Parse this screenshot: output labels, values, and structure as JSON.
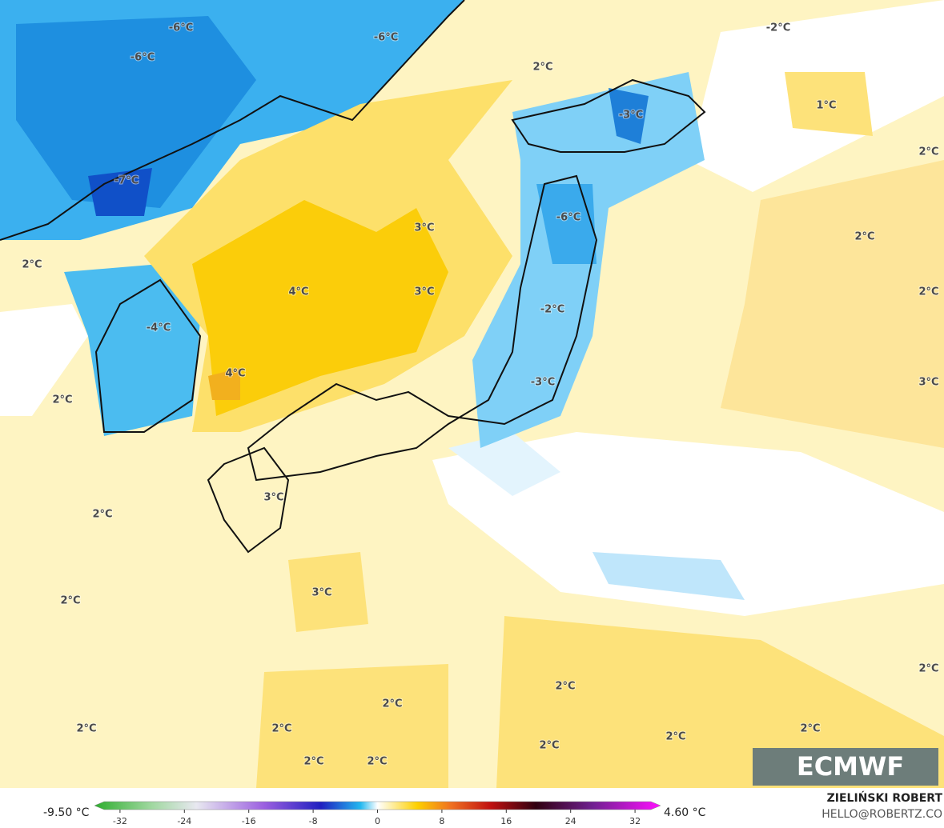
{
  "map_labels": [
    "-6°C",
    "-6°C",
    "-6°C",
    "-2°C",
    "2°C",
    "1°C",
    "-3°C",
    "2°C",
    "-7°C",
    "-6°C",
    "3°C",
    "2°C",
    "2°C",
    "4°C",
    "3°C",
    "2°C",
    "-2°C",
    "-4°C",
    "4°C",
    "3°C",
    "-3°C",
    "2°C",
    "2°C",
    "3°C",
    "2°C",
    "3°C",
    "2°C",
    "2°C",
    "2°C",
    "2°C",
    "2°C",
    "2°C",
    "2°C",
    "2°C",
    "2°C",
    "2°C"
  ],
  "colorbar": {
    "min_label": "-9.50 °C",
    "max_label": "4.60 °C",
    "ticks": [
      -32,
      -24,
      -16,
      -8,
      0,
      8,
      16,
      24,
      32
    ]
  },
  "logo": "ECMWF",
  "author": "ZIELIŃSKI ROBERT",
  "contact": "HELLO@ROBERTZ.CO"
}
